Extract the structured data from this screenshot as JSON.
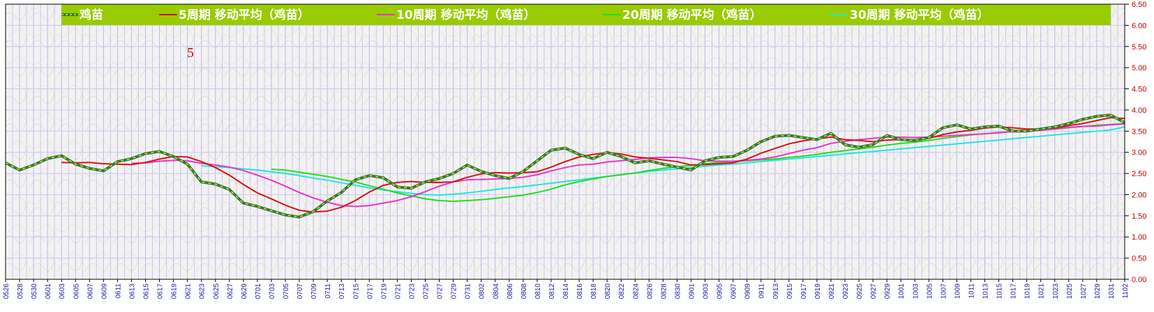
{
  "chart_data": {
    "type": "line",
    "title": "",
    "xlabel": "",
    "ylabel": "",
    "ylim": [
      0,
      6.5
    ],
    "y_ticks": [
      "0.00",
      "0.50",
      "1.00",
      "1.50",
      "2.00",
      "2.50",
      "3.00",
      "3.50",
      "4.00",
      "4.50",
      "5.00",
      "5.50",
      "6.00",
      "6.50"
    ],
    "categories": [
      "0526",
      "0528",
      "0530",
      "0601",
      "0603",
      "0605",
      "0607",
      "0609",
      "0611",
      "0613",
      "0615",
      "0617",
      "0619",
      "0621",
      "0623",
      "0625",
      "0627",
      "0629",
      "0701",
      "0703",
      "0705",
      "0707",
      "0709",
      "0711",
      "0713",
      "0715",
      "0717",
      "0719",
      "0721",
      "0723",
      "0725",
      "0727",
      "0729",
      "0731",
      "0802",
      "0804",
      "0806",
      "0808",
      "0810",
      "0812",
      "0814",
      "0816",
      "0818",
      "0820",
      "0822",
      "0824",
      "0826",
      "0828",
      "0830",
      "0901",
      "0903",
      "0905",
      "0907",
      "0909",
      "0911",
      "0913",
      "0915",
      "0917",
      "0919",
      "0921",
      "0923",
      "0925",
      "0927",
      "0929",
      "1001",
      "1003",
      "1005",
      "1007",
      "1009",
      "1011",
      "1013",
      "1015",
      "1017",
      "1019",
      "1021",
      "1023",
      "1025",
      "1027",
      "1029",
      "1031",
      "1102"
    ],
    "annotation": "5",
    "legend_position": "top",
    "grid": true,
    "series": [
      {
        "name": "鸡苗",
        "color": "#2e7d32",
        "values": [
          2.75,
          2.58,
          2.7,
          2.85,
          2.92,
          2.72,
          2.62,
          2.56,
          2.78,
          2.85,
          2.97,
          3.02,
          2.9,
          2.72,
          2.3,
          2.25,
          2.12,
          1.8,
          1.72,
          1.62,
          1.52,
          1.47,
          1.6,
          1.85,
          2.05,
          2.35,
          2.45,
          2.4,
          2.18,
          2.15,
          2.3,
          2.38,
          2.5,
          2.7,
          2.55,
          2.45,
          2.38,
          2.55,
          2.8,
          3.05,
          3.1,
          2.95,
          2.85,
          3.0,
          2.9,
          2.75,
          2.8,
          2.72,
          2.65,
          2.58,
          2.8,
          2.88,
          2.9,
          3.05,
          3.25,
          3.38,
          3.4,
          3.35,
          3.3,
          3.45,
          3.18,
          3.12,
          3.18,
          3.4,
          3.3,
          3.28,
          3.35,
          3.58,
          3.65,
          3.55,
          3.6,
          3.62,
          3.5,
          3.5,
          3.55,
          3.6,
          3.68,
          3.78,
          3.85,
          3.88,
          3.7
        ]
      },
      {
        "name": "5周期 移动平均（鸡苗）",
        "color": "#dd1111",
        "values": [
          null,
          null,
          null,
          null,
          2.76,
          2.75,
          2.76,
          2.73,
          2.72,
          2.71,
          2.76,
          2.84,
          2.9,
          2.89,
          2.78,
          2.64,
          2.46,
          2.24,
          2.04,
          1.9,
          1.75,
          1.63,
          1.59,
          1.61,
          1.7,
          1.86,
          2.06,
          2.22,
          2.29,
          2.31,
          2.29,
          2.29,
          2.3,
          2.41,
          2.49,
          2.52,
          2.51,
          2.52,
          2.54,
          2.65,
          2.78,
          2.89,
          2.95,
          2.99,
          2.96,
          2.89,
          2.86,
          2.82,
          2.78,
          2.7,
          2.71,
          2.73,
          2.75,
          2.84,
          2.98,
          3.09,
          3.2,
          3.27,
          3.32,
          3.36,
          3.3,
          3.28,
          3.25,
          3.29,
          3.3,
          3.3,
          3.33,
          3.42,
          3.48,
          3.52,
          3.57,
          3.6,
          3.58,
          3.55,
          3.55,
          3.57,
          3.63,
          3.68,
          3.75,
          3.82,
          3.8
        ]
      },
      {
        "name": "10周期 移动平均（鸡苗）",
        "color": "#ee33cc",
        "values": [
          null,
          null,
          null,
          null,
          null,
          null,
          null,
          null,
          null,
          2.74,
          2.75,
          2.79,
          2.81,
          2.8,
          2.74,
          2.7,
          2.65,
          2.57,
          2.46,
          2.34,
          2.2,
          2.05,
          1.92,
          1.82,
          1.74,
          1.72,
          1.74,
          1.8,
          1.86,
          1.95,
          2.07,
          2.2,
          2.3,
          2.35,
          2.36,
          2.37,
          2.38,
          2.41,
          2.47,
          2.56,
          2.64,
          2.7,
          2.72,
          2.77,
          2.8,
          2.83,
          2.87,
          2.88,
          2.88,
          2.85,
          2.8,
          2.79,
          2.79,
          2.81,
          2.84,
          2.89,
          2.97,
          3.05,
          3.11,
          3.21,
          3.26,
          3.3,
          3.33,
          3.36,
          3.36,
          3.35,
          3.36,
          3.38,
          3.4,
          3.42,
          3.44,
          3.46,
          3.49,
          3.5,
          3.52,
          3.55,
          3.59,
          3.61,
          3.62,
          3.65,
          3.67
        ]
      },
      {
        "name": "20周期 移动平均（鸡苗）",
        "color": "#22dd22",
        "values": [
          null,
          null,
          null,
          null,
          null,
          null,
          null,
          null,
          null,
          null,
          null,
          null,
          null,
          null,
          null,
          null,
          null,
          null,
          null,
          2.6,
          2.58,
          2.53,
          2.48,
          2.43,
          2.36,
          2.3,
          2.21,
          2.13,
          2.04,
          1.97,
          1.9,
          1.86,
          1.84,
          1.86,
          1.88,
          1.91,
          1.95,
          1.99,
          2.05,
          2.13,
          2.23,
          2.31,
          2.37,
          2.43,
          2.47,
          2.51,
          2.57,
          2.62,
          2.66,
          2.69,
          2.73,
          2.76,
          2.78,
          2.8,
          2.82,
          2.84,
          2.88,
          2.91,
          2.95,
          3.0,
          3.04,
          3.08,
          3.12,
          3.17,
          3.21,
          3.24,
          3.28,
          3.33,
          3.37,
          3.41,
          3.44,
          3.47,
          3.49,
          3.51,
          3.53,
          3.55,
          3.58,
          3.61,
          3.64,
          3.66,
          3.68
        ]
      },
      {
        "name": "30周期 移动平均（鸡苗）",
        "color": "#22e5e5",
        "values": [
          null,
          null,
          null,
          null,
          null,
          null,
          null,
          null,
          null,
          null,
          null,
          null,
          null,
          null,
          2.68,
          2.66,
          2.64,
          2.61,
          2.58,
          2.54,
          2.5,
          2.45,
          2.39,
          2.34,
          2.28,
          2.22,
          2.16,
          2.11,
          2.07,
          2.03,
          2.0,
          1.99,
          2.01,
          2.04,
          2.08,
          2.12,
          2.16,
          2.19,
          2.23,
          2.27,
          2.31,
          2.35,
          2.39,
          2.43,
          2.47,
          2.51,
          2.55,
          2.58,
          2.61,
          2.64,
          2.67,
          2.7,
          2.72,
          2.75,
          2.78,
          2.81,
          2.84,
          2.87,
          2.9,
          2.93,
          2.96,
          2.99,
          3.02,
          3.05,
          3.08,
          3.11,
          3.14,
          3.17,
          3.2,
          3.23,
          3.26,
          3.29,
          3.32,
          3.35,
          3.38,
          3.41,
          3.44,
          3.47,
          3.5,
          3.53,
          3.6
        ]
      }
    ]
  }
}
